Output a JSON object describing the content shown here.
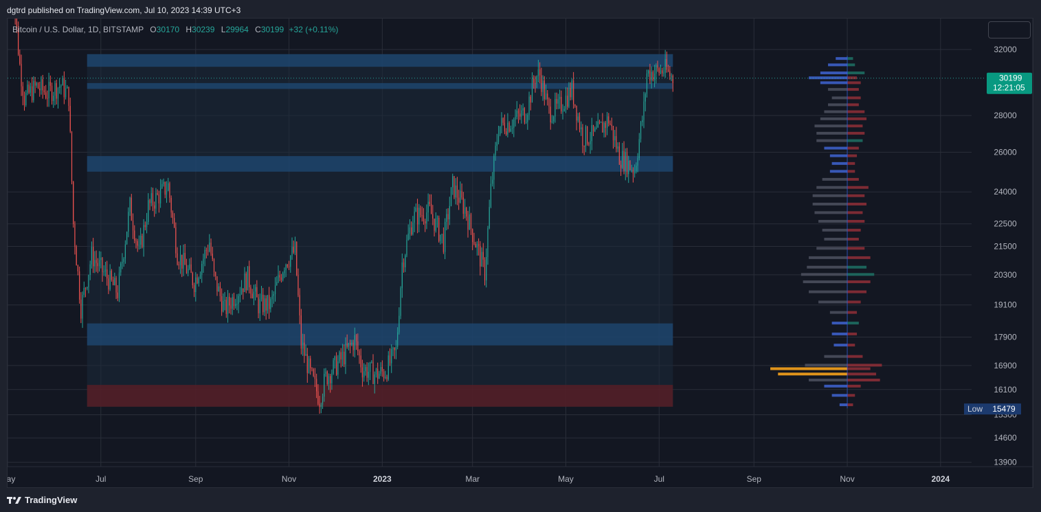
{
  "header": {
    "publish_info": "dgtrd published on TradingView.com, Jul 10, 2023 14:39 UTC+3"
  },
  "symbol": {
    "name": "Bitcoin / U.S. Dollar, 1D, BITSTAMP",
    "o_label": "O",
    "o": "30170",
    "h_label": "H",
    "h": "30239",
    "l_label": "L",
    "l": "29964",
    "c_label": "C",
    "c": "30199",
    "change": "+32 (+0.11%)"
  },
  "price_badge": {
    "price": "30199",
    "countdown": "12:21:05"
  },
  "low_badge": {
    "label": "Low",
    "value": "15479"
  },
  "footer": {
    "brand": "TradingView",
    "logo": "tradingview-logo-icon"
  },
  "colors": {
    "up": "#26a69a",
    "down": "#ef5350",
    "accent": "#089981",
    "poc": "#f7a21b",
    "zone": "#1f4e79"
  },
  "chart_data": {
    "type": "candlestick",
    "y_scale": "log",
    "ylim": [
      13400,
      33500
    ],
    "y_ticks": [
      "32000",
      "28000",
      "26000",
      "24000",
      "22500",
      "21500",
      "20300",
      "19100",
      "17900",
      "16900",
      "16100",
      "15300",
      "14600",
      "13900"
    ],
    "x_ticks": [
      "May",
      "Jul",
      "Sep",
      "Nov",
      "2023",
      "Mar",
      "May",
      "Jul",
      "Sep",
      "Nov",
      "2024"
    ],
    "x_range": [
      "2022-05-01",
      "2024-02-15"
    ],
    "last_price": 30199,
    "price_path": [
      [
        "2022-05-03",
        38000
      ],
      [
        "2022-05-09",
        31000
      ],
      [
        "2022-05-12",
        29000
      ],
      [
        "2022-05-20",
        29700
      ],
      [
        "2022-05-27",
        29300
      ],
      [
        "2022-06-05",
        29800
      ],
      [
        "2022-06-10",
        29100
      ],
      [
        "2022-06-13",
        22500
      ],
      [
        "2022-06-18",
        19000
      ],
      [
        "2022-06-25",
        21100
      ],
      [
        "2022-07-05",
        20200
      ],
      [
        "2022-07-12",
        19600
      ],
      [
        "2022-07-20",
        23300
      ],
      [
        "2022-07-26",
        21200
      ],
      [
        "2022-08-01",
        23300
      ],
      [
        "2022-08-14",
        24300
      ],
      [
        "2022-08-20",
        21200
      ],
      [
        "2022-08-31",
        20000
      ],
      [
        "2022-09-10",
        21700
      ],
      [
        "2022-09-13",
        20200
      ],
      [
        "2022-09-20",
        18900
      ],
      [
        "2022-10-05",
        20200
      ],
      [
        "2022-10-12",
        19100
      ],
      [
        "2022-10-20",
        19100
      ],
      [
        "2022-10-29",
        20800
      ],
      [
        "2022-11-05",
        21300
      ],
      [
        "2022-11-09",
        17600
      ],
      [
        "2022-11-10",
        17500
      ],
      [
        "2022-11-15",
        16600
      ],
      [
        "2022-11-21",
        15800
      ],
      [
        "2022-11-25",
        16500
      ],
      [
        "2022-12-05",
        17100
      ],
      [
        "2022-12-14",
        17800
      ],
      [
        "2022-12-19",
        16800
      ],
      [
        "2022-12-28",
        16600
      ],
      [
        "2023-01-03",
        16700
      ],
      [
        "2023-01-10",
        17400
      ],
      [
        "2023-01-14",
        20800
      ],
      [
        "2023-01-21",
        22800
      ],
      [
        "2023-02-01",
        23100
      ],
      [
        "2023-02-10",
        21700
      ],
      [
        "2023-02-16",
        24300
      ],
      [
        "2023-02-24",
        23200
      ],
      [
        "2023-03-09",
        20400
      ],
      [
        "2023-03-13",
        24100
      ],
      [
        "2023-03-18",
        27400
      ],
      [
        "2023-03-25",
        27600
      ],
      [
        "2023-04-05",
        28200
      ],
      [
        "2023-04-11",
        30300
      ],
      [
        "2023-04-14",
        30400
      ],
      [
        "2023-04-20",
        28200
      ],
      [
        "2023-04-26",
        28400
      ],
      [
        "2023-05-05",
        29500
      ],
      [
        "2023-05-12",
        26800
      ],
      [
        "2023-05-20",
        26900
      ],
      [
        "2023-05-29",
        27800
      ],
      [
        "2023-06-05",
        25800
      ],
      [
        "2023-06-15",
        25100
      ],
      [
        "2023-06-21",
        28400
      ],
      [
        "2023-06-23",
        30500
      ],
      [
        "2023-07-05",
        30700
      ],
      [
        "2023-07-10",
        30199
      ]
    ],
    "zones": [
      {
        "type": "resistance",
        "from": "2022-06-22",
        "to": "2023-07-10",
        "low": 30900,
        "high": 31700
      },
      {
        "type": "resistance",
        "from": "2022-06-22",
        "to": "2023-07-10",
        "low": 29550,
        "high": 29900
      },
      {
        "type": "support",
        "from": "2022-06-22",
        "to": "2023-07-10",
        "low": 25000,
        "high": 25800
      },
      {
        "type": "support",
        "from": "2022-06-22",
        "to": "2023-07-10",
        "low": 17600,
        "high": 18400
      },
      {
        "type": "demand",
        "from": "2022-06-22",
        "to": "2023-07-10",
        "low": 15550,
        "high": 16250
      }
    ],
    "range_box": {
      "from": "2022-06-22",
      "to": "2023-07-10",
      "low": 15550,
      "high": 31700
    },
    "volume_profile": {
      "anchor_date": "2023-11-01",
      "poc": 16780,
      "rows": [
        [
          31400,
          6,
          3
        ],
        [
          31000,
          10,
          4
        ],
        [
          30500,
          14,
          9
        ],
        [
          30199,
          20,
          5
        ],
        [
          29900,
          14,
          7
        ],
        [
          29500,
          10,
          6
        ],
        [
          29000,
          8,
          7
        ],
        [
          28600,
          10,
          6
        ],
        [
          28200,
          12,
          9
        ],
        [
          27800,
          14,
          10
        ],
        [
          27400,
          17,
          8
        ],
        [
          27000,
          16,
          9
        ],
        [
          26600,
          16,
          8
        ],
        [
          26200,
          12,
          6
        ],
        [
          25800,
          9,
          5
        ],
        [
          25400,
          8,
          4
        ],
        [
          25000,
          9,
          4
        ],
        [
          24600,
          13,
          6
        ],
        [
          24200,
          16,
          11
        ],
        [
          23800,
          18,
          9
        ],
        [
          23400,
          18,
          10
        ],
        [
          23000,
          17,
          8
        ],
        [
          22600,
          15,
          9
        ],
        [
          22200,
          13,
          7
        ],
        [
          21800,
          12,
          6
        ],
        [
          21400,
          16,
          9
        ],
        [
          21000,
          20,
          12
        ],
        [
          20600,
          21,
          10
        ],
        [
          20300,
          24,
          14
        ],
        [
          20000,
          23,
          12
        ],
        [
          19600,
          20,
          10
        ],
        [
          19200,
          15,
          7
        ],
        [
          18800,
          9,
          5
        ],
        [
          18400,
          8,
          6
        ],
        [
          18000,
          8,
          5
        ],
        [
          17600,
          7,
          4
        ],
        [
          17200,
          12,
          8
        ],
        [
          16900,
          22,
          18
        ],
        [
          16780,
          40,
          12
        ],
        [
          16600,
          36,
          15
        ],
        [
          16400,
          20,
          17
        ],
        [
          16200,
          12,
          7
        ],
        [
          15900,
          8,
          4
        ],
        [
          15600,
          4,
          3
        ]
      ]
    }
  }
}
